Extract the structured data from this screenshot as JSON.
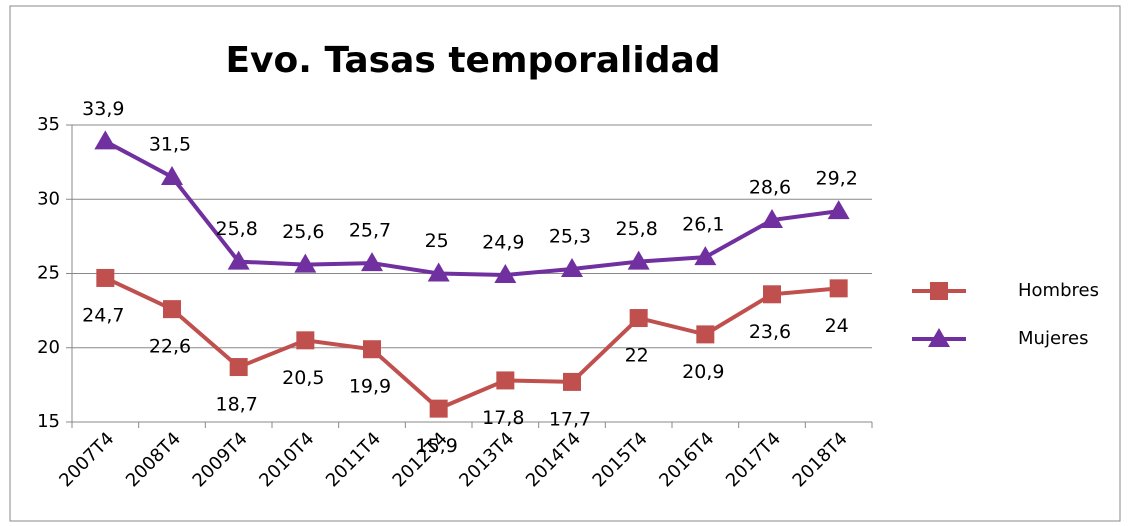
{
  "chart_data": {
    "type": "line",
    "title": "Evo. Tasas temporalidad",
    "categories": [
      "2007T4",
      "2008T4",
      "2009T4",
      "2010T4",
      "2011T4",
      "2012T4",
      "2013T4",
      "2014T4",
      "2015T4",
      "2016T4",
      "2017T4",
      "2018T4"
    ],
    "series": [
      {
        "name": "Hombres",
        "color": "#c0504d",
        "marker": "square",
        "values": [
          24.7,
          22.6,
          18.7,
          20.5,
          19.9,
          15.9,
          17.8,
          17.7,
          22,
          20.9,
          23.6,
          24
        ],
        "value_labels": [
          "24,7",
          "22,6",
          "18,7",
          "20,5",
          "19,9",
          "15,9",
          "17,8",
          "17,7",
          "22",
          "20,9",
          "23,6",
          "24"
        ]
      },
      {
        "name": "Mujeres",
        "color": "#7030a0",
        "marker": "triangle",
        "values": [
          33.9,
          31.5,
          25.8,
          25.6,
          25.7,
          25,
          24.9,
          25.3,
          25.8,
          26.1,
          28.6,
          29.2
        ],
        "value_labels": [
          "33,9",
          "31,5",
          "25,8",
          "25,6",
          "25,7",
          "25",
          "24,9",
          "25,3",
          "25,8",
          "26,1",
          "28,6",
          "29,2"
        ]
      }
    ],
    "ylim": [
      15,
      35
    ],
    "yticks": [
      15,
      20,
      25,
      30,
      35
    ],
    "grid": true,
    "legend": "right"
  }
}
